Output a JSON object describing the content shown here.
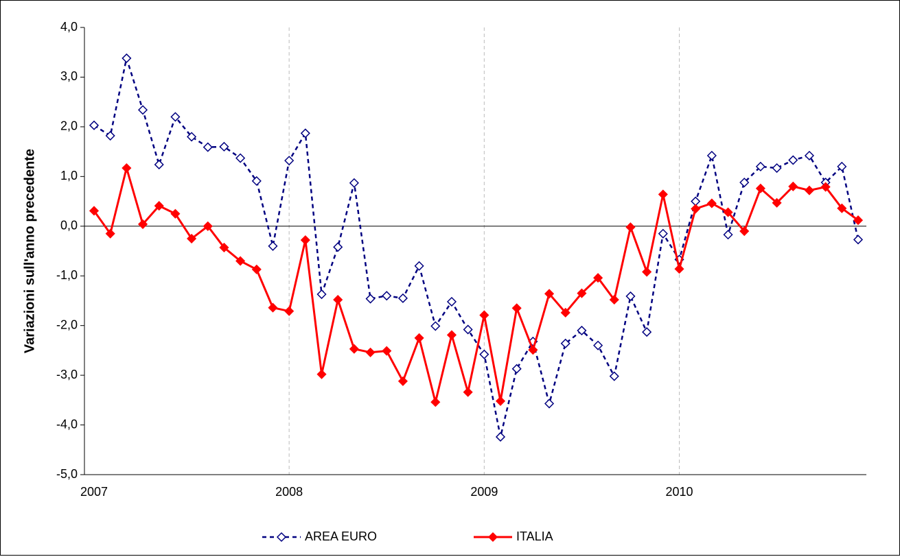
{
  "chart_data": {
    "type": "line",
    "y_label": "Variazioni sull'anno precedente",
    "categories": [
      "2007",
      null,
      null,
      null,
      null,
      null,
      null,
      null,
      null,
      null,
      null,
      null,
      "2008",
      null,
      null,
      null,
      null,
      null,
      null,
      null,
      null,
      null,
      null,
      null,
      "2009",
      null,
      null,
      null,
      null,
      null,
      null,
      null,
      null,
      null,
      null,
      null,
      "2010",
      null,
      null,
      null,
      null,
      null,
      null,
      null,
      null,
      null,
      null,
      null
    ],
    "series": [
      {
        "name": "AREA EURO",
        "color": "#000080",
        "dashed": true,
        "marker_filled": false,
        "values": [
          2.03,
          1.82,
          3.38,
          2.34,
          1.24,
          2.2,
          1.8,
          1.59,
          1.6,
          1.37,
          0.91,
          -0.4,
          1.32,
          1.87,
          -1.37,
          -0.42,
          0.87,
          -1.46,
          -1.4,
          -1.45,
          -0.8,
          -2.01,
          -1.52,
          -2.08,
          -2.58,
          -4.24,
          -2.87,
          -2.32,
          -3.57,
          -2.36,
          -2.1,
          -2.4,
          -3.02,
          -1.41,
          -2.13,
          -0.15,
          -0.67,
          0.5,
          1.42,
          -0.17,
          0.88,
          1.2,
          1.17,
          1.33,
          1.42,
          0.88,
          1.2,
          -0.27
        ]
      },
      {
        "name": "ITALIA",
        "color": "#ff0000",
        "dashed": false,
        "marker_filled": true,
        "values": [
          0.31,
          -0.15,
          1.17,
          0.04,
          0.41,
          0.25,
          -0.25,
          0.0,
          -0.43,
          -0.7,
          -0.87,
          -1.64,
          -1.71,
          -0.28,
          -2.98,
          -1.48,
          -2.47,
          -2.54,
          -2.51,
          -3.12,
          -2.25,
          -3.54,
          -2.19,
          -3.34,
          -1.79,
          -3.52,
          -1.65,
          -2.49,
          -1.36,
          -1.74,
          -1.35,
          -1.04,
          -1.48,
          -0.02,
          -0.92,
          0.64,
          -0.86,
          0.35,
          0.46,
          0.28,
          -0.1,
          0.76,
          0.47,
          0.8,
          0.72,
          0.79,
          0.36,
          0.12
        ]
      }
    ],
    "ylim": [
      -5,
      4
    ],
    "yticks": [
      {
        "value": -5,
        "label": "-5,0"
      },
      {
        "value": -4,
        "label": "-4,0"
      },
      {
        "value": -3,
        "label": "-3,0"
      },
      {
        "value": -2,
        "label": "-2,0"
      },
      {
        "value": -1,
        "label": "-1,0"
      },
      {
        "value": 0,
        "label": "0,0"
      },
      {
        "value": 1,
        "label": "1,0"
      },
      {
        "value": 2,
        "label": "2,0"
      },
      {
        "value": 3,
        "label": "3,0"
      },
      {
        "value": 4,
        "label": "4,0"
      }
    ],
    "xgrid": true,
    "legend": "bottom"
  }
}
